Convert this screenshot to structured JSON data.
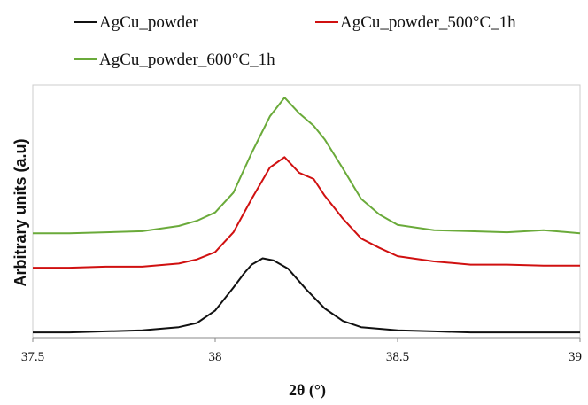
{
  "chart_data": {
    "type": "line",
    "xlabel": "2θ (°)",
    "ylabel": "Arbitrary units (a.u)",
    "xlim": [
      37.5,
      39
    ],
    "x_ticks": [
      "37.5",
      "38",
      "38.5",
      "39"
    ],
    "y_ticks": [],
    "grid": false,
    "legend_position": "top",
    "series": [
      {
        "name": "AgCu_powder",
        "color": "#111111",
        "x": [
          37.5,
          37.6,
          37.7,
          37.8,
          37.9,
          37.95,
          38.0,
          38.05,
          38.08,
          38.1,
          38.13,
          38.16,
          38.2,
          38.25,
          38.3,
          38.35,
          38.4,
          38.5,
          38.6,
          38.7,
          38.8,
          38.9,
          39.0
        ],
        "y": [
          0.05,
          0.05,
          0.06,
          0.07,
          0.1,
          0.14,
          0.26,
          0.48,
          0.62,
          0.7,
          0.76,
          0.74,
          0.66,
          0.46,
          0.28,
          0.16,
          0.1,
          0.07,
          0.06,
          0.05,
          0.05,
          0.05,
          0.05
        ]
      },
      {
        "name": "AgCu_powder_500°C_1h",
        "color": "#d01010",
        "x": [
          37.5,
          37.6,
          37.7,
          37.8,
          37.9,
          37.95,
          38.0,
          38.05,
          38.1,
          38.15,
          38.19,
          38.23,
          38.27,
          38.3,
          38.35,
          38.4,
          38.45,
          38.5,
          38.6,
          38.7,
          38.8,
          38.9,
          39.0
        ],
        "y": [
          0.67,
          0.67,
          0.68,
          0.68,
          0.71,
          0.75,
          0.82,
          1.01,
          1.33,
          1.63,
          1.73,
          1.58,
          1.52,
          1.36,
          1.14,
          0.95,
          0.86,
          0.78,
          0.73,
          0.7,
          0.7,
          0.69,
          0.69
        ]
      },
      {
        "name": "AgCu_powder_600°C_1h",
        "color": "#6aaa3a",
        "x": [
          37.5,
          37.6,
          37.7,
          37.8,
          37.9,
          37.95,
          38.0,
          38.05,
          38.1,
          38.15,
          38.19,
          38.23,
          38.27,
          38.3,
          38.35,
          38.4,
          38.45,
          38.5,
          38.6,
          38.7,
          38.8,
          38.9,
          39.0
        ],
        "y": [
          1.0,
          1.0,
          1.01,
          1.02,
          1.07,
          1.12,
          1.2,
          1.39,
          1.77,
          2.12,
          2.3,
          2.15,
          2.03,
          1.9,
          1.62,
          1.33,
          1.18,
          1.08,
          1.03,
          1.02,
          1.01,
          1.03,
          1.0
        ]
      }
    ]
  }
}
